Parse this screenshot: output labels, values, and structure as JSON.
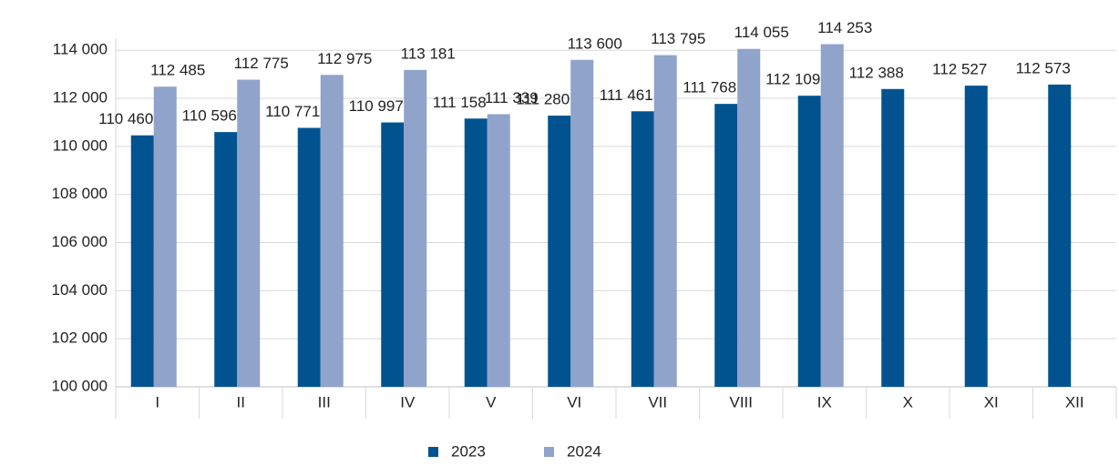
{
  "chart_data": {
    "type": "bar",
    "categories": [
      "I",
      "II",
      "III",
      "IV",
      "V",
      "VI",
      "VII",
      "VIII",
      "IX",
      "X",
      "XI",
      "XII"
    ],
    "series": [
      {
        "name": "2023",
        "color": "#00538f",
        "values": [
          110460,
          110596,
          110771,
          110997,
          111158,
          111280,
          111461,
          111768,
          112109,
          112388,
          112527,
          112573
        ],
        "value_labels": [
          "110 460",
          "110 596",
          "110 771",
          "110 997",
          "111 158",
          "111 280",
          "111 461",
          "111 768",
          "112 109",
          "112 388",
          "112 527",
          "112 573"
        ]
      },
      {
        "name": "2024",
        "color": "#8fa3cb",
        "values": [
          112485,
          112775,
          112975,
          113181,
          111339,
          113600,
          113795,
          114055,
          114253,
          null,
          null,
          null
        ],
        "value_labels": [
          "112 485",
          "112 775",
          "112 975",
          "113 181",
          "111 339",
          "113 600",
          "113 795",
          "114 055",
          "114 253",
          null,
          null,
          null
        ]
      }
    ],
    "ylim": [
      100000,
      114500
    ],
    "yticks": [
      {
        "value": 100000,
        "label": "100 000"
      },
      {
        "value": 102000,
        "label": "102 000"
      },
      {
        "value": 104000,
        "label": "104 000"
      },
      {
        "value": 106000,
        "label": "106 000"
      },
      {
        "value": 108000,
        "label": "108 000"
      },
      {
        "value": 110000,
        "label": "110 000"
      },
      {
        "value": 112000,
        "label": "112 000"
      },
      {
        "value": 114000,
        "label": "114 000"
      }
    ],
    "grid": true,
    "legend": "bottom"
  }
}
